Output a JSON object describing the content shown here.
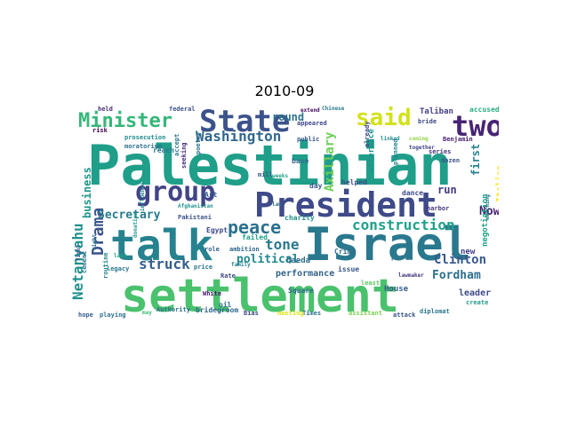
{
  "title": "2010-09",
  "words": [
    {
      "text": "Palestinian",
      "color": "#1f9e89"
    },
    {
      "text": "settlement",
      "color": "#4ac16d"
    },
    {
      "text": "talk",
      "color": "#26828e"
    },
    {
      "text": "Israel",
      "color": "#2a788e"
    },
    {
      "text": "President",
      "color": "#3e4a89"
    },
    {
      "text": "State",
      "color": "#3b528b"
    },
    {
      "text": "two",
      "color": "#482475"
    },
    {
      "text": "group",
      "color": "#414487"
    },
    {
      "text": "Minister",
      "color": "#35b779"
    },
    {
      "text": "said",
      "color": "#d2e21b"
    },
    {
      "text": "peace",
      "color": "#2c728e"
    },
    {
      "text": "Washington",
      "color": "#31688e"
    },
    {
      "text": "construction",
      "color": "#1fa188"
    },
    {
      "text": "Netanyahu",
      "color": "#21918c"
    },
    {
      "text": "Drama",
      "color": "#3b528b"
    },
    {
      "text": "struck",
      "color": "#355f8d"
    },
    {
      "text": "tone",
      "color": "#2a788e"
    },
    {
      "text": "political",
      "color": "#23898e"
    },
    {
      "text": "Clinton",
      "color": "#38598c"
    },
    {
      "text": "Fordham",
      "color": "#2d708e"
    },
    {
      "text": "Now",
      "color": "#481f70"
    },
    {
      "text": "Secretary",
      "color": "#287c8e"
    },
    {
      "text": "Axillary",
      "color": "#6ece58"
    },
    {
      "text": "first",
      "color": "#26828e"
    },
    {
      "text": "round",
      "color": "#2c728e"
    },
    {
      "text": "run",
      "color": "#443983"
    },
    {
      "text": "performance",
      "color": "#33638d"
    },
    {
      "text": "leader",
      "color": "#3e4989"
    },
    {
      "text": "business",
      "color": "#1f968b"
    },
    {
      "text": "House",
      "color": "#355f8d"
    },
    {
      "text": "Qaeda",
      "color": "#2e6e8e"
    },
    {
      "text": "Crime",
      "color": "#2d708e"
    },
    {
      "text": "Square",
      "color": "#31688e"
    },
    {
      "text": "issue",
      "color": "#39558c"
    },
    {
      "text": "lawmaker",
      "color": "#453781"
    },
    {
      "text": "negotiation",
      "color": "#20a486"
    },
    {
      "text": "Italian",
      "color": "#fde725"
    },
    {
      "text": "Taliban",
      "color": "#433e85"
    },
    {
      "text": "accused",
      "color": "#29af7f"
    },
    {
      "text": "bride",
      "color": "#3f4788"
    },
    {
      "text": "held",
      "color": "#472d7b"
    },
    {
      "text": "federal",
      "color": "#3b528b"
    },
    {
      "text": "extend",
      "color": "#460b5e"
    },
    {
      "text": "appeared",
      "color": "#3f4788"
    },
    {
      "text": "public",
      "color": "#38588c"
    },
    {
      "text": "prosecution",
      "color": "#238a8d"
    },
    {
      "text": "moratorium",
      "color": "#2d708e"
    },
    {
      "text": "Benjamin",
      "color": "#482071"
    },
    {
      "text": "coming",
      "color": "#90d743"
    },
    {
      "text": "together",
      "color": "#414487"
    },
    {
      "text": "linked",
      "color": "#238a8d"
    },
    {
      "text": "Pakistani",
      "color": "#3b528b"
    },
    {
      "text": "Afghanistan",
      "color": "#21918c"
    },
    {
      "text": "reach",
      "color": "#2a788e"
    },
    {
      "text": "risk",
      "color": "#440154"
    },
    {
      "text": "seeking",
      "color": "#472f7d"
    },
    {
      "text": "Egypt",
      "color": "#3e4989"
    },
    {
      "text": "failed",
      "color": "#1fa088"
    },
    {
      "text": "role",
      "color": "#355e8d"
    },
    {
      "text": "ambition",
      "color": "#31688e"
    },
    {
      "text": "family",
      "color": "#26828e"
    },
    {
      "text": "charity",
      "color": "#20928c"
    },
    {
      "text": "last",
      "color": "#22a884"
    },
    {
      "text": "legacy",
      "color": "#2a788e"
    },
    {
      "text": "Rate",
      "color": "#3e4989"
    },
    {
      "text": "price",
      "color": "#2a768e"
    },
    {
      "text": "White",
      "color": "#481a6c"
    },
    {
      "text": "oil",
      "color": "#2e6d8e"
    },
    {
      "text": "Authority",
      "color": "#2d708e"
    },
    {
      "text": "bridegroom",
      "color": "#31688e"
    },
    {
      "text": "Bias",
      "color": "#3e4989"
    },
    {
      "text": "meeting",
      "color": "#dde318"
    },
    {
      "text": "Times",
      "color": "#2c738e"
    },
    {
      "text": "assistant",
      "color": "#7ad151"
    },
    {
      "text": "attack",
      "color": "#3a538b"
    },
    {
      "text": "diplomat",
      "color": "#2a778e"
    },
    {
      "text": "create",
      "color": "#1f9a8a"
    },
    {
      "text": "hope",
      "color": "#355f8d"
    },
    {
      "text": "playing",
      "color": "#2e6e8e"
    },
    {
      "text": "routine",
      "color": "#24878e"
    },
    {
      "text": "cement",
      "color": "#2c718e"
    },
    {
      "text": "may",
      "color": "#38b977"
    },
    {
      "text": "law",
      "color": "#2f6b8e"
    },
    {
      "text": "day",
      "color": "#39568c"
    },
    {
      "text": "helped",
      "color": "#3c4f8a"
    },
    {
      "text": "base",
      "color": "#31688e"
    },
    {
      "text": "dance",
      "color": "#3e4c8a"
    },
    {
      "text": "harbor",
      "color": "#453581"
    },
    {
      "text": "planned",
      "color": "#25848e"
    },
    {
      "text": "utterance",
      "color": "#20938c"
    },
    {
      "text": "poetry",
      "color": "#2c728e"
    },
    {
      "text": "accept",
      "color": "#2a788e"
    },
    {
      "text": "Art",
      "color": "#355f8d"
    },
    {
      "text": "mill",
      "color": "#3a548c"
    },
    {
      "text": "weeks",
      "color": "#1fa187"
    },
    {
      "text": "pose",
      "color": "#2a788e"
    },
    {
      "text": "new",
      "color": "#433e85"
    },
    {
      "text": "already",
      "color": "#404688"
    },
    {
      "text": "Chinese",
      "color": "#2a788e"
    },
    {
      "text": "watching",
      "color": "#2a788e"
    },
    {
      "text": "donation",
      "color": "#1f998a"
    },
    {
      "text": "dozen",
      "color": "#3b528b"
    },
    {
      "text": "series",
      "color": "#46337e"
    },
    {
      "text": "influence",
      "color": "#24878e"
    },
    {
      "text": "fight",
      "color": "#3b528b"
    },
    {
      "text": "least",
      "color": "#5ec962"
    },
    {
      "text": "right",
      "color": "#2c728e"
    }
  ]
}
